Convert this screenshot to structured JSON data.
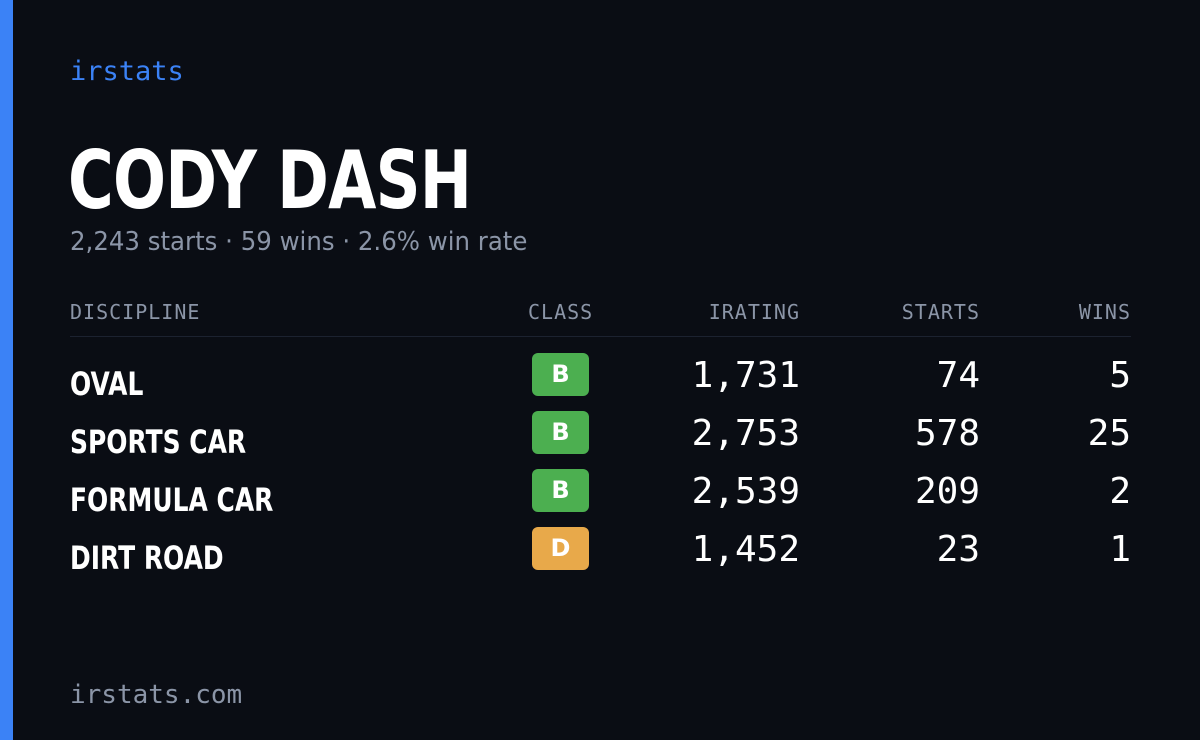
{
  "brand": "irstats",
  "driver": {
    "name": "CODY DASH",
    "summary": "2,243 starts · 59 wins · 2.6% win rate"
  },
  "table": {
    "headers": {
      "discipline": "DISCIPLINE",
      "class": "CLASS",
      "irating": "IRATING",
      "starts": "STARTS",
      "wins": "WINS"
    },
    "rows": [
      {
        "discipline": "OVAL",
        "class": "B",
        "class_color": "#4caf50",
        "irating": "1,731",
        "starts": "74",
        "wins": "5"
      },
      {
        "discipline": "SPORTS CAR",
        "class": "B",
        "class_color": "#4caf50",
        "irating": "2,753",
        "starts": "578",
        "wins": "25"
      },
      {
        "discipline": "FORMULA CAR",
        "class": "B",
        "class_color": "#4caf50",
        "irating": "2,539",
        "starts": "209",
        "wins": "2"
      },
      {
        "discipline": "DIRT ROAD",
        "class": "D",
        "class_color": "#e8a94a",
        "irating": "1,452",
        "starts": "23",
        "wins": "1"
      }
    ]
  },
  "footer": "irstats.com",
  "colors": {
    "background": "#0a0d14",
    "accent": "#3b82f6",
    "muted_text": "#8b95a7",
    "class_b": "#4caf50",
    "class_d": "#e8a94a"
  }
}
